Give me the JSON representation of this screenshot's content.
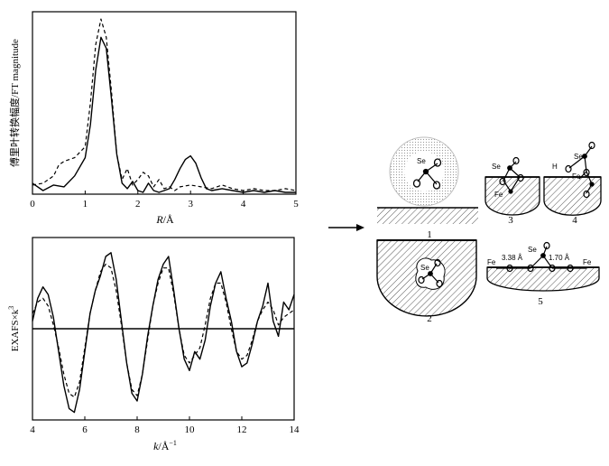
{
  "chart_data": [
    {
      "type": "line",
      "ylabel": "傅里叶转换幅度/FT magnitude",
      "xlabel_italic": "R",
      "xlabel_unit": "/Å",
      "xlim": [
        0,
        5
      ],
      "ylim": [
        0,
        1.0
      ],
      "xticks": [
        "0",
        "1",
        "2",
        "3",
        "4",
        "5"
      ],
      "series": [
        {
          "style": "solid",
          "x": [
            0,
            0.2,
            0.4,
            0.6,
            0.8,
            1.0,
            1.1,
            1.2,
            1.3,
            1.4,
            1.5,
            1.6,
            1.7,
            1.8,
            1.9,
            2.0,
            2.1,
            2.2,
            2.3,
            2.4,
            2.5,
            2.6,
            2.7,
            2.8,
            2.9,
            3.0,
            3.1,
            3.2,
            3.3,
            3.4,
            3.6,
            3.8,
            4.0,
            4.2,
            4.4,
            4.6,
            4.8,
            5.0
          ],
          "y": [
            0.06,
            0.02,
            0.05,
            0.04,
            0.1,
            0.2,
            0.38,
            0.68,
            0.86,
            0.8,
            0.52,
            0.22,
            0.06,
            0.03,
            0.07,
            0.02,
            0.01,
            0.06,
            0.02,
            0.01,
            0.02,
            0.03,
            0.08,
            0.14,
            0.19,
            0.21,
            0.17,
            0.09,
            0.03,
            0.02,
            0.03,
            0.02,
            0.01,
            0.02,
            0.01,
            0.02,
            0.01,
            0.01
          ]
        },
        {
          "style": "dashed",
          "x": [
            0,
            0.2,
            0.4,
            0.5,
            0.6,
            0.8,
            1.0,
            1.1,
            1.2,
            1.3,
            1.4,
            1.5,
            1.6,
            1.7,
            1.8,
            1.9,
            2.0,
            2.1,
            2.2,
            2.3,
            2.4,
            2.5,
            2.6,
            2.7,
            2.8,
            3.0,
            3.2,
            3.4,
            3.6,
            3.8,
            4.0,
            4.2,
            4.4,
            4.6,
            4.8,
            5.0
          ],
          "y": [
            0.05,
            0.06,
            0.1,
            0.16,
            0.18,
            0.2,
            0.26,
            0.5,
            0.82,
            0.96,
            0.86,
            0.56,
            0.22,
            0.08,
            0.14,
            0.05,
            0.08,
            0.12,
            0.1,
            0.04,
            0.08,
            0.03,
            0.04,
            0.02,
            0.04,
            0.05,
            0.04,
            0.03,
            0.05,
            0.03,
            0.02,
            0.03,
            0.02,
            0.02,
            0.03,
            0.02
          ]
        }
      ]
    },
    {
      "type": "line",
      "ylabel": "EXAFS×k",
      "ylabel_sup": "3",
      "xlabel_italic": "k",
      "xlabel_unit": "/Å",
      "xlabel_sup": "−1",
      "xlim": [
        4,
        14
      ],
      "ylim": [
        -1.2,
        1.2
      ],
      "xticks": [
        "4",
        "6",
        "8",
        "10",
        "12",
        "14"
      ],
      "baseline": 0,
      "series": [
        {
          "style": "solid",
          "x": [
            4.0,
            4.2,
            4.4,
            4.6,
            4.8,
            5.0,
            5.2,
            5.4,
            5.6,
            5.8,
            6.0,
            6.2,
            6.4,
            6.6,
            6.8,
            7.0,
            7.2,
            7.4,
            7.6,
            7.8,
            8.0,
            8.2,
            8.4,
            8.6,
            8.8,
            9.0,
            9.2,
            9.4,
            9.6,
            9.8,
            10.0,
            10.2,
            10.4,
            10.6,
            10.8,
            11.0,
            11.2,
            11.4,
            11.6,
            11.8,
            12.0,
            12.2,
            12.4,
            12.6,
            12.8,
            13.0,
            13.2,
            13.4,
            13.6,
            13.8,
            14.0
          ],
          "y": [
            0.1,
            0.4,
            0.55,
            0.45,
            0.15,
            -0.3,
            -0.75,
            -1.05,
            -1.1,
            -0.8,
            -0.3,
            0.2,
            0.5,
            0.7,
            0.95,
            1.0,
            0.65,
            0.1,
            -0.45,
            -0.85,
            -0.95,
            -0.6,
            -0.1,
            0.3,
            0.65,
            0.85,
            0.95,
            0.5,
            0.0,
            -0.4,
            -0.55,
            -0.3,
            -0.4,
            -0.15,
            0.3,
            0.6,
            0.75,
            0.4,
            0.1,
            -0.3,
            -0.5,
            -0.45,
            -0.2,
            0.1,
            0.3,
            0.6,
            0.1,
            -0.1,
            0.35,
            0.25,
            0.45
          ]
        },
        {
          "style": "dashed",
          "x": [
            4.0,
            4.2,
            4.4,
            4.6,
            4.8,
            5.0,
            5.2,
            5.4,
            5.6,
            5.8,
            6.0,
            6.2,
            6.4,
            6.6,
            6.8,
            7.0,
            7.2,
            7.4,
            7.6,
            7.8,
            8.0,
            8.2,
            8.4,
            8.6,
            8.8,
            9.0,
            9.2,
            9.4,
            9.6,
            9.8,
            10.0,
            10.2,
            10.4,
            10.6,
            10.8,
            11.0,
            11.2,
            11.4,
            11.6,
            11.8,
            12.0,
            12.2,
            12.4,
            12.6,
            12.8,
            13.0,
            13.2,
            13.4,
            13.6,
            13.8,
            14.0
          ],
          "y": [
            0.2,
            0.35,
            0.4,
            0.3,
            0.05,
            -0.25,
            -0.6,
            -0.85,
            -0.9,
            -0.7,
            -0.25,
            0.2,
            0.5,
            0.75,
            0.85,
            0.8,
            0.5,
            0.05,
            -0.45,
            -0.8,
            -0.88,
            -0.6,
            -0.15,
            0.3,
            0.6,
            0.8,
            0.8,
            0.45,
            0.0,
            -0.35,
            -0.45,
            -0.35,
            -0.25,
            0.05,
            0.4,
            0.6,
            0.6,
            0.35,
            0.0,
            -0.3,
            -0.4,
            -0.35,
            -0.15,
            0.1,
            0.25,
            0.35,
            0.25,
            0.05,
            0.15,
            0.2,
            0.25
          ]
        }
      ]
    }
  ],
  "diagram": {
    "labels": [
      "1",
      "2",
      "3",
      "4",
      "5"
    ],
    "atoms": {
      "se": "Se",
      "fe": "Fe",
      "h": "H"
    },
    "distances": {
      "d1": "3.38 Å",
      "d2": "1.70 Å"
    }
  }
}
